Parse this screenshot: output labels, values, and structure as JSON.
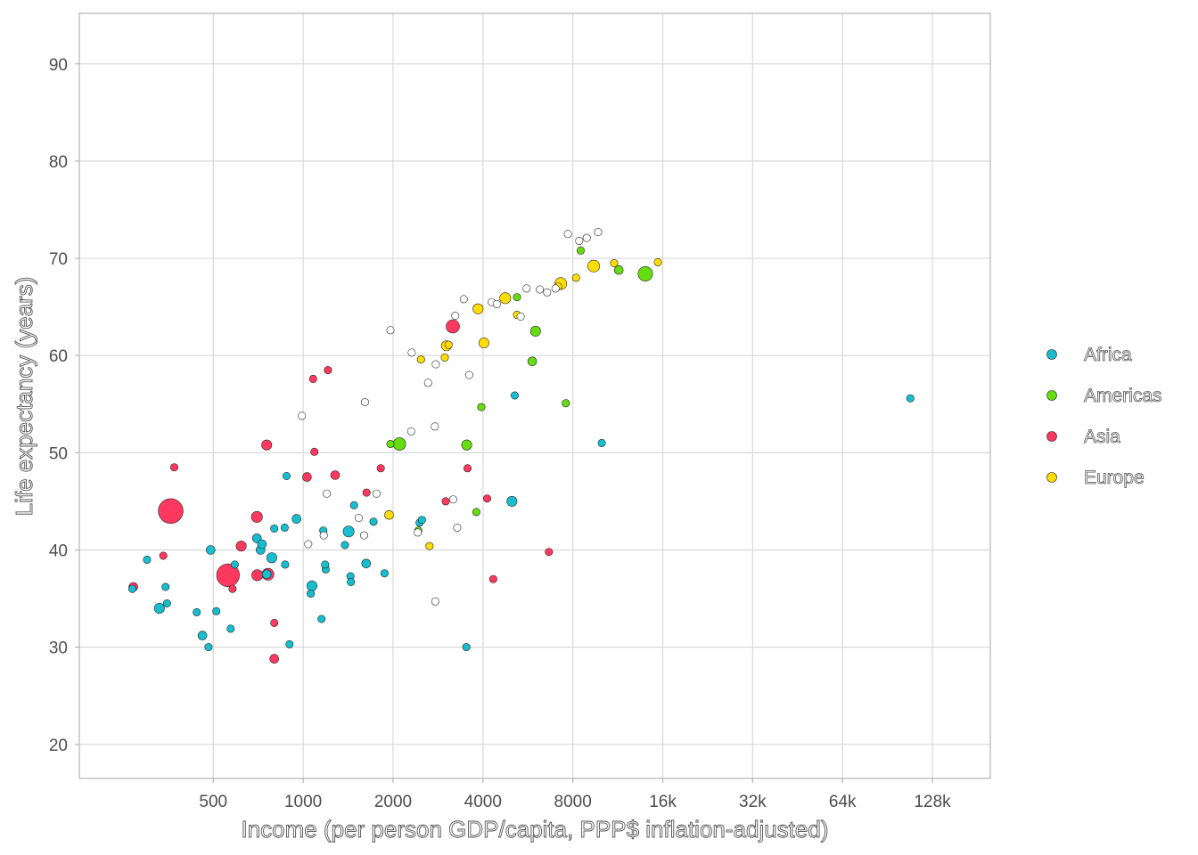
{
  "chart_data": {
    "type": "scatter",
    "xlabel": "Income (per person GDP/capita, PPP$ inflation-adjusted)",
    "ylabel": "Life expectancy (years)",
    "x_scale": "log2",
    "xlim": [
      178,
      200000
    ],
    "ylim": [
      16.5,
      95.2
    ],
    "x_ticks": [
      500,
      1000,
      2000,
      4000,
      8000,
      16000,
      32000,
      64000,
      128000
    ],
    "x_tick_labels": [
      "500",
      "1000",
      "2000",
      "4000",
      "8000",
      "16k",
      "32k",
      "64k",
      "128k"
    ],
    "y_ticks": [
      20,
      30,
      40,
      50,
      60,
      70,
      80,
      90
    ],
    "y_tick_labels": [
      "20",
      "30",
      "40",
      "50",
      "60",
      "70",
      "80",
      "90"
    ],
    "grid": true,
    "legend_position": "right",
    "series": [
      {
        "name": "Africa",
        "color": "#17becf",
        "points": [
          [
            268,
            36.0,
            1
          ],
          [
            300,
            39.0,
            1
          ],
          [
            330,
            34.0,
            3
          ],
          [
            346,
            36.2,
            1
          ],
          [
            350,
            34.5,
            1
          ],
          [
            440,
            33.6,
            1
          ],
          [
            460,
            31.2,
            2
          ],
          [
            482,
            30.0,
            1
          ],
          [
            490,
            40.0,
            2
          ],
          [
            512,
            33.7,
            1
          ],
          [
            572,
            31.9,
            1
          ],
          [
            590,
            38.5,
            1
          ],
          [
            700,
            41.2,
            2
          ],
          [
            720,
            40.0,
            2
          ],
          [
            728,
            40.6,
            2
          ],
          [
            755,
            37.5,
            2
          ],
          [
            785,
            39.2,
            3
          ],
          [
            800,
            42.2,
            1
          ],
          [
            867,
            42.3,
            1
          ],
          [
            870,
            38.5,
            1
          ],
          [
            880,
            47.6,
            1
          ],
          [
            900,
            30.3,
            1
          ],
          [
            950,
            43.2,
            2
          ],
          [
            1060,
            35.5,
            1
          ],
          [
            1070,
            36.3,
            3
          ],
          [
            1152,
            32.9,
            1
          ],
          [
            1168,
            42.0,
            1
          ],
          [
            1190,
            38.0,
            1
          ],
          [
            1185,
            38.5,
            1
          ],
          [
            1380,
            40.5,
            1
          ],
          [
            1420,
            41.9,
            4
          ],
          [
            1440,
            37.3,
            1
          ],
          [
            1445,
            36.7,
            1
          ],
          [
            1480,
            44.6,
            1
          ],
          [
            1626,
            38.6,
            2
          ],
          [
            1720,
            42.9,
            1
          ],
          [
            1873,
            37.6,
            1
          ],
          [
            2453,
            42.8,
            1
          ],
          [
            2500,
            43.1,
            1
          ],
          [
            3520,
            30.0,
            1
          ],
          [
            5000,
            45.0,
            3
          ],
          [
            5110,
            55.9,
            1
          ],
          [
            10000,
            51.0,
            1
          ],
          [
            108000,
            55.6,
            1
          ]
        ]
      },
      {
        "name": "Americas",
        "color": "#66dd11",
        "points": [
          [
            1960,
            50.9,
            1
          ],
          [
            2100,
            50.9,
            6
          ],
          [
            2430,
            42.0,
            1
          ],
          [
            3530,
            50.8,
            3
          ],
          [
            3800,
            43.9,
            1
          ],
          [
            3950,
            54.7,
            1
          ],
          [
            5200,
            66.0,
            1
          ],
          [
            5850,
            59.4,
            2
          ],
          [
            6000,
            62.5,
            3
          ],
          [
            7580,
            55.1,
            1
          ],
          [
            8500,
            70.8,
            1
          ],
          [
            11400,
            68.8,
            2
          ],
          [
            13990,
            68.4,
            9
          ]
        ]
      },
      {
        "name": "Asia",
        "color": "#ff3860",
        "points": [
          [
            270,
            36.2,
            2
          ],
          [
            340,
            39.4,
            1
          ],
          [
            360,
            44.0,
            34
          ],
          [
            370,
            48.5,
            1
          ],
          [
            560,
            37.4,
            28
          ],
          [
            580,
            36.0,
            1
          ],
          [
            620,
            40.4,
            3
          ],
          [
            700,
            43.4,
            4
          ],
          [
            702,
            37.4,
            4
          ],
          [
            755,
            50.8,
            3
          ],
          [
            762,
            37.5,
            5
          ],
          [
            800,
            32.5,
            1
          ],
          [
            800,
            28.8,
            2
          ],
          [
            1030,
            47.5,
            2
          ],
          [
            1080,
            57.6,
            1
          ],
          [
            1090,
            50.1,
            1
          ],
          [
            1210,
            58.5,
            1
          ],
          [
            1280,
            47.7,
            2
          ],
          [
            1630,
            45.9,
            1
          ],
          [
            1820,
            48.4,
            1
          ],
          [
            3000,
            45.0,
            1
          ],
          [
            3170,
            63.0,
            7
          ],
          [
            3550,
            48.4,
            1
          ],
          [
            4130,
            45.3,
            1
          ],
          [
            4330,
            37.0,
            1
          ],
          [
            6650,
            39.8,
            1
          ]
        ]
      },
      {
        "name": "Europe",
        "color": "#ffdd00",
        "points": [
          [
            1940,
            43.6,
            2
          ],
          [
            2480,
            59.6,
            1
          ],
          [
            2650,
            40.4,
            1
          ],
          [
            2980,
            59.8,
            1
          ],
          [
            3020,
            61.0,
            3
          ],
          [
            3070,
            61.1,
            1
          ],
          [
            3850,
            64.8,
            3
          ],
          [
            4030,
            61.3,
            3
          ],
          [
            4750,
            65.9,
            4
          ],
          [
            5200,
            64.2,
            1
          ],
          [
            7140,
            67.1,
            1
          ],
          [
            7290,
            67.4,
            5
          ],
          [
            8200,
            68.0,
            1
          ],
          [
            9400,
            69.2,
            5
          ],
          [
            11000,
            69.5,
            1
          ],
          [
            15400,
            69.6,
            1
          ]
        ]
      }
    ],
    "extra_points": [
      [
        1960,
        62.6,
        1
      ],
      [
        2310,
        60.3,
        1
      ],
      [
        2300,
        52.2,
        1
      ],
      [
        2620,
        57.2,
        1
      ],
      [
        2780,
        59.1,
        1
      ],
      [
        2760,
        52.7,
        1
      ],
      [
        3450,
        65.8,
        1
      ],
      [
        3600,
        58.0,
        1
      ],
      [
        3230,
        64.1,
        1
      ],
      [
        4280,
        65.5,
        1
      ],
      [
        4450,
        65.3,
        1
      ],
      [
        5600,
        66.9,
        1
      ],
      [
        5350,
        64.0,
        1
      ],
      [
        6200,
        66.8,
        1
      ],
      [
        6560,
        66.5,
        1
      ],
      [
        7000,
        66.9,
        1
      ],
      [
        8400,
        71.8,
        1
      ],
      [
        8900,
        72.1,
        1
      ],
      [
        9720,
        72.7,
        1
      ],
      [
        7700,
        72.5,
        1
      ],
      [
        3280,
        42.3,
        1
      ],
      [
        2420,
        41.8,
        1
      ],
      [
        2770,
        34.7,
        1
      ],
      [
        1535,
        43.3,
        1
      ],
      [
        1172,
        41.5,
        1
      ],
      [
        1040,
        40.6,
        1
      ],
      [
        1610,
        55.2,
        1
      ],
      [
        990,
        53.8,
        1
      ],
      [
        3180,
        45.2,
        1
      ],
      [
        1200,
        45.8,
        1
      ],
      [
        1760,
        45.8,
        1
      ],
      [
        1600,
        41.5,
        1
      ]
    ]
  },
  "legend": {
    "items": [
      {
        "label": "Africa",
        "color": "#17becf"
      },
      {
        "label": "Americas",
        "color": "#66dd11"
      },
      {
        "label": "Asia",
        "color": "#ff3860"
      },
      {
        "label": "Europe",
        "color": "#ffdd00"
      }
    ]
  }
}
